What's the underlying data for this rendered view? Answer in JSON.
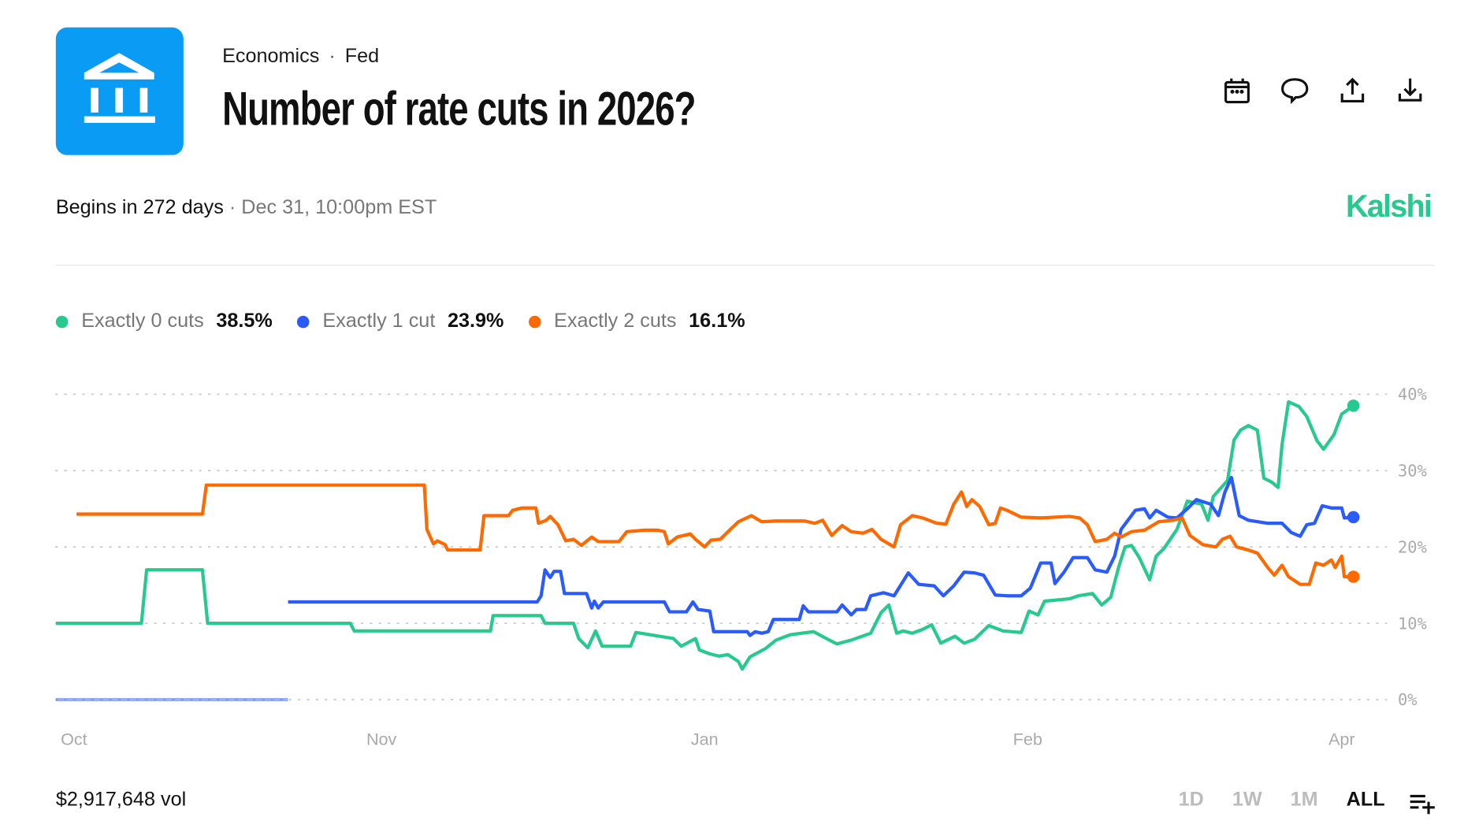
{
  "header": {
    "category": "Economics",
    "subcategory": "Fed",
    "title": "Number of rate cuts in 2026?",
    "icons": [
      "calendar-icon",
      "comment-icon",
      "share-icon",
      "download-icon"
    ],
    "logo_icon": "bank-building-icon"
  },
  "meta": {
    "begins": "Begins in 272 days",
    "separator": "·",
    "date": "Dec 31, 10:00pm EST",
    "brand": "Kalshi"
  },
  "legend": [
    {
      "name": "Exactly 0 cuts",
      "value": "38.5%",
      "color": "#28c98e"
    },
    {
      "name": "Exactly 1 cut",
      "value": "23.9%",
      "color": "#2a5bff"
    },
    {
      "name": "Exactly 2 cuts",
      "value": "16.1%",
      "color": "#ff6a00"
    }
  ],
  "footer": {
    "volume": "$2,917,648 vol",
    "ranges": [
      "1D",
      "1W",
      "1M",
      "ALL"
    ],
    "active_range": "ALL"
  },
  "chart_data": {
    "type": "line",
    "title": "Number of rate cuts in 2026?",
    "xlabel": "",
    "ylabel": "",
    "xlim": [
      0,
      100
    ],
    "ylim": [
      0,
      40
    ],
    "yticks": [
      {
        "value": 40,
        "label": "40%"
      },
      {
        "value": 30,
        "label": "30%"
      },
      {
        "value": 20,
        "label": "20%"
      },
      {
        "value": 10,
        "label": "10%"
      },
      {
        "value": 0,
        "label": "0%"
      }
    ],
    "xticks": [
      {
        "value": 1.4,
        "label": "Oct"
      },
      {
        "value": 25.1,
        "label": "Nov"
      },
      {
        "value": 50,
        "label": "Jan"
      },
      {
        "value": 74.9,
        "label": "Feb"
      },
      {
        "value": 99.1,
        "label": "Apr"
      }
    ],
    "grid": true,
    "legend_position": "top-left",
    "series": [
      {
        "name": "Exactly 0 cuts",
        "color": "#28c98e",
        "faint_until": null,
        "points": [
          [
            0,
            10
          ],
          [
            6.6,
            10
          ],
          [
            7.0,
            17
          ],
          [
            11.3,
            17
          ],
          [
            11.7,
            10
          ],
          [
            22.7,
            10
          ],
          [
            23.0,
            9
          ],
          [
            33.5,
            9
          ],
          [
            33.7,
            11
          ],
          [
            37.4,
            11
          ],
          [
            37.7,
            10
          ],
          [
            39.9,
            10
          ],
          [
            40.3,
            8
          ],
          [
            41.0,
            6.8
          ],
          [
            41.6,
            9
          ],
          [
            42.1,
            7
          ],
          [
            44.3,
            7
          ],
          [
            44.7,
            8.8
          ],
          [
            47.6,
            8
          ],
          [
            48.2,
            7
          ],
          [
            49.3,
            8
          ],
          [
            49.6,
            6.5
          ],
          [
            50.4,
            6
          ],
          [
            51.1,
            5.7
          ],
          [
            51.8,
            5.9
          ],
          [
            52.6,
            5
          ],
          [
            52.9,
            4
          ],
          [
            53.5,
            5.6
          ],
          [
            54.7,
            6.7
          ],
          [
            55.5,
            7.8
          ],
          [
            56.6,
            8.5
          ],
          [
            58.4,
            8.9
          ],
          [
            59.5,
            7.9
          ],
          [
            60.2,
            7.3
          ],
          [
            61.3,
            7.8
          ],
          [
            62.8,
            8.7
          ],
          [
            63.6,
            11.4
          ],
          [
            64.2,
            12.4
          ],
          [
            64.8,
            8.7
          ],
          [
            65.3,
            9
          ],
          [
            66.0,
            8.7
          ],
          [
            66.8,
            9.2
          ],
          [
            67.5,
            9.8
          ],
          [
            68.2,
            7.4
          ],
          [
            69.3,
            8.3
          ],
          [
            70.0,
            7.4
          ],
          [
            70.8,
            7.9
          ],
          [
            71.9,
            9.7
          ],
          [
            73.0,
            9
          ],
          [
            74.4,
            8.8
          ],
          [
            75.0,
            11.6
          ],
          [
            75.7,
            11.1
          ],
          [
            76.2,
            12.9
          ],
          [
            78.1,
            13.2
          ],
          [
            78.8,
            13.6
          ],
          [
            79.9,
            13.9
          ],
          [
            80.6,
            12.4
          ],
          [
            81.3,
            13.4
          ],
          [
            81.9,
            17.3
          ],
          [
            82.4,
            20
          ],
          [
            82.9,
            20.2
          ],
          [
            83.5,
            18.6
          ],
          [
            84.3,
            15.7
          ],
          [
            84.8,
            18.8
          ],
          [
            85.4,
            19.8
          ],
          [
            86.4,
            22.3
          ],
          [
            87.2,
            26
          ],
          [
            88.3,
            25.6
          ],
          [
            88.8,
            23.5
          ],
          [
            89.2,
            26.6
          ],
          [
            90.3,
            28.7
          ],
          [
            90.8,
            34
          ],
          [
            91.3,
            35.3
          ],
          [
            91.9,
            35.9
          ],
          [
            92.6,
            35.3
          ],
          [
            93.1,
            29
          ],
          [
            93.7,
            28.5
          ],
          [
            94.2,
            27.8
          ],
          [
            94.5,
            33.4
          ],
          [
            95.0,
            39
          ],
          [
            95.4,
            38.7
          ],
          [
            95.8,
            38.4
          ],
          [
            96.4,
            37.1
          ],
          [
            97.2,
            33.9
          ],
          [
            97.7,
            32.8
          ],
          [
            98.5,
            34.7
          ],
          [
            99.1,
            37.4
          ],
          [
            100,
            38.5
          ]
        ]
      },
      {
        "name": "Exactly 1 cut",
        "color": "#2a5bff",
        "faint_until": 17.9,
        "points": [
          [
            0,
            0
          ],
          [
            17.9,
            0
          ],
          [
            17.9,
            12.8
          ],
          [
            37.1,
            12.8
          ],
          [
            37.4,
            13.6
          ],
          [
            37.7,
            17
          ],
          [
            38.1,
            16
          ],
          [
            38.4,
            16.8
          ],
          [
            38.9,
            16.8
          ],
          [
            39.2,
            13.9
          ],
          [
            40.9,
            13.9
          ],
          [
            41.3,
            12
          ],
          [
            41.5,
            12.9
          ],
          [
            41.8,
            12
          ],
          [
            42.2,
            12.8
          ],
          [
            46.9,
            12.8
          ],
          [
            47.3,
            11.5
          ],
          [
            48.6,
            11.5
          ],
          [
            49.1,
            12.8
          ],
          [
            49.5,
            11.8
          ],
          [
            50.4,
            11.6
          ],
          [
            50.7,
            8.9
          ],
          [
            53.3,
            8.9
          ],
          [
            53.5,
            8.4
          ],
          [
            53.9,
            8.9
          ],
          [
            54.4,
            8.7
          ],
          [
            54.9,
            8.9
          ],
          [
            55.3,
            10.5
          ],
          [
            57.3,
            10.5
          ],
          [
            57.6,
            12.3
          ],
          [
            58.0,
            11.5
          ],
          [
            60.2,
            11.5
          ],
          [
            60.6,
            12.4
          ],
          [
            61.3,
            11.1
          ],
          [
            61.7,
            11.8
          ],
          [
            62.4,
            11.8
          ],
          [
            62.8,
            13.6
          ],
          [
            63.8,
            14
          ],
          [
            64.6,
            13.6
          ],
          [
            65.7,
            16.6
          ],
          [
            66.5,
            15.1
          ],
          [
            67.7,
            14.9
          ],
          [
            68.4,
            13.6
          ],
          [
            69.2,
            14.9
          ],
          [
            70.0,
            16.7
          ],
          [
            70.8,
            16.6
          ],
          [
            71.5,
            16.3
          ],
          [
            72.4,
            13.7
          ],
          [
            73.3,
            13.6
          ],
          [
            74.4,
            13.6
          ],
          [
            75.1,
            14.6
          ],
          [
            75.9,
            17.9
          ],
          [
            76.7,
            17.9
          ],
          [
            77.0,
            15.2
          ],
          [
            77.7,
            16.7
          ],
          [
            78.4,
            18.6
          ],
          [
            79.5,
            18.6
          ],
          [
            80.1,
            17
          ],
          [
            81.0,
            16.7
          ],
          [
            81.6,
            18.8
          ],
          [
            82.1,
            22.3
          ],
          [
            83.2,
            24.8
          ],
          [
            83.9,
            25
          ],
          [
            84.3,
            23.8
          ],
          [
            84.8,
            24.8
          ],
          [
            85.7,
            23.9
          ],
          [
            86.4,
            23.8
          ],
          [
            87.2,
            25
          ],
          [
            87.9,
            26.2
          ],
          [
            89.0,
            25.6
          ],
          [
            89.6,
            24.1
          ],
          [
            90.1,
            27.2
          ],
          [
            90.6,
            29.1
          ],
          [
            91.2,
            24.1
          ],
          [
            91.9,
            23.5
          ],
          [
            93.4,
            23.1
          ],
          [
            94.5,
            23.1
          ],
          [
            95.2,
            21.9
          ],
          [
            95.9,
            21.4
          ],
          [
            96.4,
            22.9
          ],
          [
            97.0,
            23.1
          ],
          [
            97.6,
            25.4
          ],
          [
            98.3,
            25.1
          ],
          [
            99.1,
            25.1
          ],
          [
            99.3,
            23.8
          ],
          [
            100,
            23.9
          ]
        ]
      },
      {
        "name": "Exactly 2 cuts",
        "color": "#ff6a00",
        "faint_until": null,
        "points": [
          [
            1.6,
            24.3
          ],
          [
            11.3,
            24.3
          ],
          [
            11.6,
            28.1
          ],
          [
            28.4,
            28.1
          ],
          [
            28.6,
            22.3
          ],
          [
            29.1,
            20.4
          ],
          [
            29.4,
            20.8
          ],
          [
            30.0,
            20.3
          ],
          [
            30.2,
            19.6
          ],
          [
            32.7,
            19.6
          ],
          [
            33.0,
            24.1
          ],
          [
            34.9,
            24.1
          ],
          [
            35.2,
            24.8
          ],
          [
            35.9,
            25.1
          ],
          [
            37.0,
            25.1
          ],
          [
            37.2,
            23.1
          ],
          [
            37.8,
            23.5
          ],
          [
            38.1,
            24
          ],
          [
            38.7,
            22.9
          ],
          [
            39.3,
            20.8
          ],
          [
            39.9,
            21
          ],
          [
            40.5,
            20.2
          ],
          [
            41.3,
            21.3
          ],
          [
            41.8,
            20.7
          ],
          [
            43.4,
            20.7
          ],
          [
            44.0,
            22
          ],
          [
            45.4,
            22.2
          ],
          [
            46.4,
            22.2
          ],
          [
            46.9,
            22
          ],
          [
            47.2,
            20.4
          ],
          [
            47.9,
            21.3
          ],
          [
            48.9,
            21.7
          ],
          [
            49.3,
            21
          ],
          [
            50.0,
            20
          ],
          [
            50.5,
            20.9
          ],
          [
            51.2,
            21
          ],
          [
            51.8,
            22
          ],
          [
            52.6,
            23.3
          ],
          [
            53.6,
            24.1
          ],
          [
            54.4,
            23.3
          ],
          [
            55.5,
            23.4
          ],
          [
            57.7,
            23.4
          ],
          [
            58.5,
            23.1
          ],
          [
            59.1,
            23.5
          ],
          [
            59.8,
            21.5
          ],
          [
            60.6,
            22.8
          ],
          [
            61.3,
            22
          ],
          [
            62.2,
            21.8
          ],
          [
            62.9,
            22.3
          ],
          [
            63.6,
            21
          ],
          [
            64.6,
            20
          ],
          [
            65.1,
            22.9
          ],
          [
            66.0,
            24.1
          ],
          [
            66.8,
            23.8
          ],
          [
            67.9,
            23.1
          ],
          [
            68.6,
            23
          ],
          [
            69.2,
            25.6
          ],
          [
            69.8,
            27.2
          ],
          [
            70.2,
            25.3
          ],
          [
            70.6,
            26.2
          ],
          [
            71.2,
            25.3
          ],
          [
            71.9,
            22.9
          ],
          [
            72.4,
            23.1
          ],
          [
            72.8,
            25.1
          ],
          [
            73.3,
            24.8
          ],
          [
            74.4,
            23.9
          ],
          [
            75.9,
            23.8
          ],
          [
            78.1,
            24
          ],
          [
            78.9,
            23.8
          ],
          [
            79.5,
            22.9
          ],
          [
            80.1,
            20.7
          ],
          [
            81.0,
            21
          ],
          [
            81.6,
            21.8
          ],
          [
            82.1,
            21.3
          ],
          [
            82.9,
            22
          ],
          [
            83.9,
            22.2
          ],
          [
            85.0,
            23.3
          ],
          [
            86.1,
            23.5
          ],
          [
            86.8,
            23.8
          ],
          [
            87.4,
            21.5
          ],
          [
            88.4,
            20.3
          ],
          [
            89.4,
            20
          ],
          [
            89.9,
            21
          ],
          [
            90.5,
            21.4
          ],
          [
            91.0,
            20
          ],
          [
            91.9,
            19.6
          ],
          [
            92.6,
            19.2
          ],
          [
            93.4,
            17.3
          ],
          [
            93.9,
            16.3
          ],
          [
            94.5,
            17.6
          ],
          [
            95.0,
            16.1
          ],
          [
            95.9,
            15.1
          ],
          [
            96.6,
            15.1
          ],
          [
            97.1,
            17.9
          ],
          [
            97.7,
            17.6
          ],
          [
            98.3,
            18.3
          ],
          [
            98.6,
            17.3
          ],
          [
            99.1,
            18.8
          ],
          [
            99.3,
            16.1
          ],
          [
            100,
            16.1
          ]
        ]
      }
    ]
  }
}
